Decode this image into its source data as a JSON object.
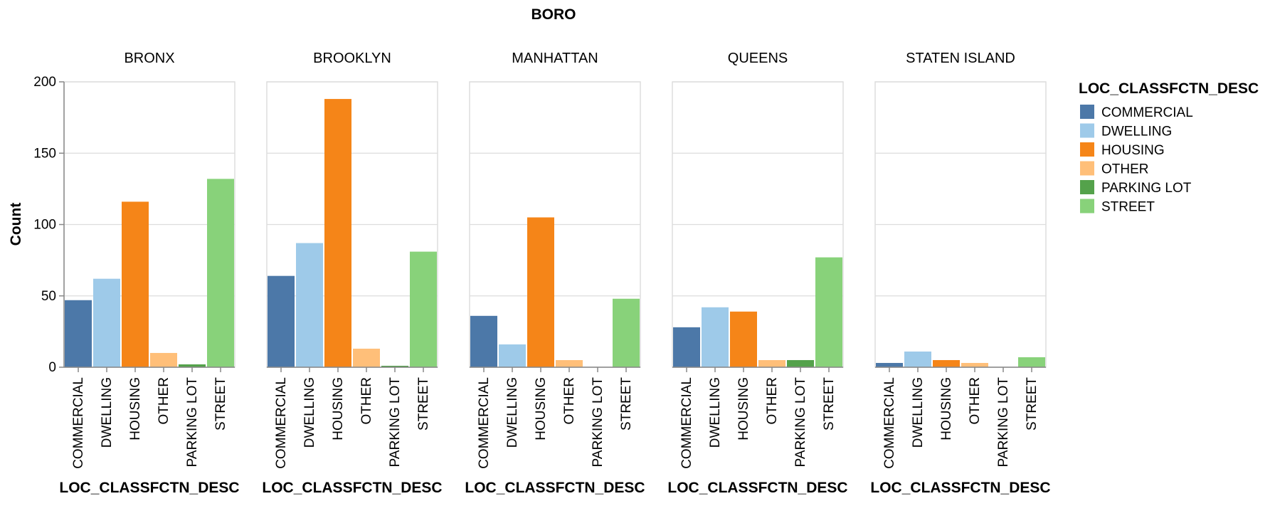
{
  "chart_data": {
    "type": "bar",
    "title": "BORO",
    "facet_field": "BORO",
    "facets": [
      "BRONX",
      "BROOKLYN",
      "MANHATTAN",
      "QUEENS",
      "STATEN ISLAND"
    ],
    "categories": [
      "COMMERCIAL",
      "DWELLING",
      "HOUSING",
      "OTHER",
      "PARKING LOT",
      "STREET"
    ],
    "values": [
      [
        47,
        62,
        116,
        10,
        2,
        132
      ],
      [
        64,
        87,
        188,
        13,
        1,
        81
      ],
      [
        36,
        16,
        105,
        5,
        0,
        48
      ],
      [
        28,
        42,
        39,
        5,
        5,
        77
      ],
      [
        3,
        11,
        5,
        3,
        0,
        7
      ]
    ],
    "xlabel": "LOC_CLASSFCTN_DESC",
    "ylabel": "Count",
    "ylim": [
      0,
      200
    ],
    "yticks": [
      "0",
      "50",
      "100",
      "150",
      "200"
    ],
    "grid": true,
    "legend": {
      "title": "LOC_CLASSFCTN_DESC",
      "placement": "right",
      "items": [
        "COMMERCIAL",
        "DWELLING",
        "HOUSING",
        "OTHER",
        "PARKING LOT",
        "STREET"
      ]
    },
    "colors": {
      "COMMERCIAL": "#4c78a8",
      "DWELLING": "#9ecae9",
      "HOUSING": "#f58518",
      "OTHER": "#ffbf79",
      "PARKING LOT": "#54a24b",
      "STREET": "#88d27a"
    }
  }
}
